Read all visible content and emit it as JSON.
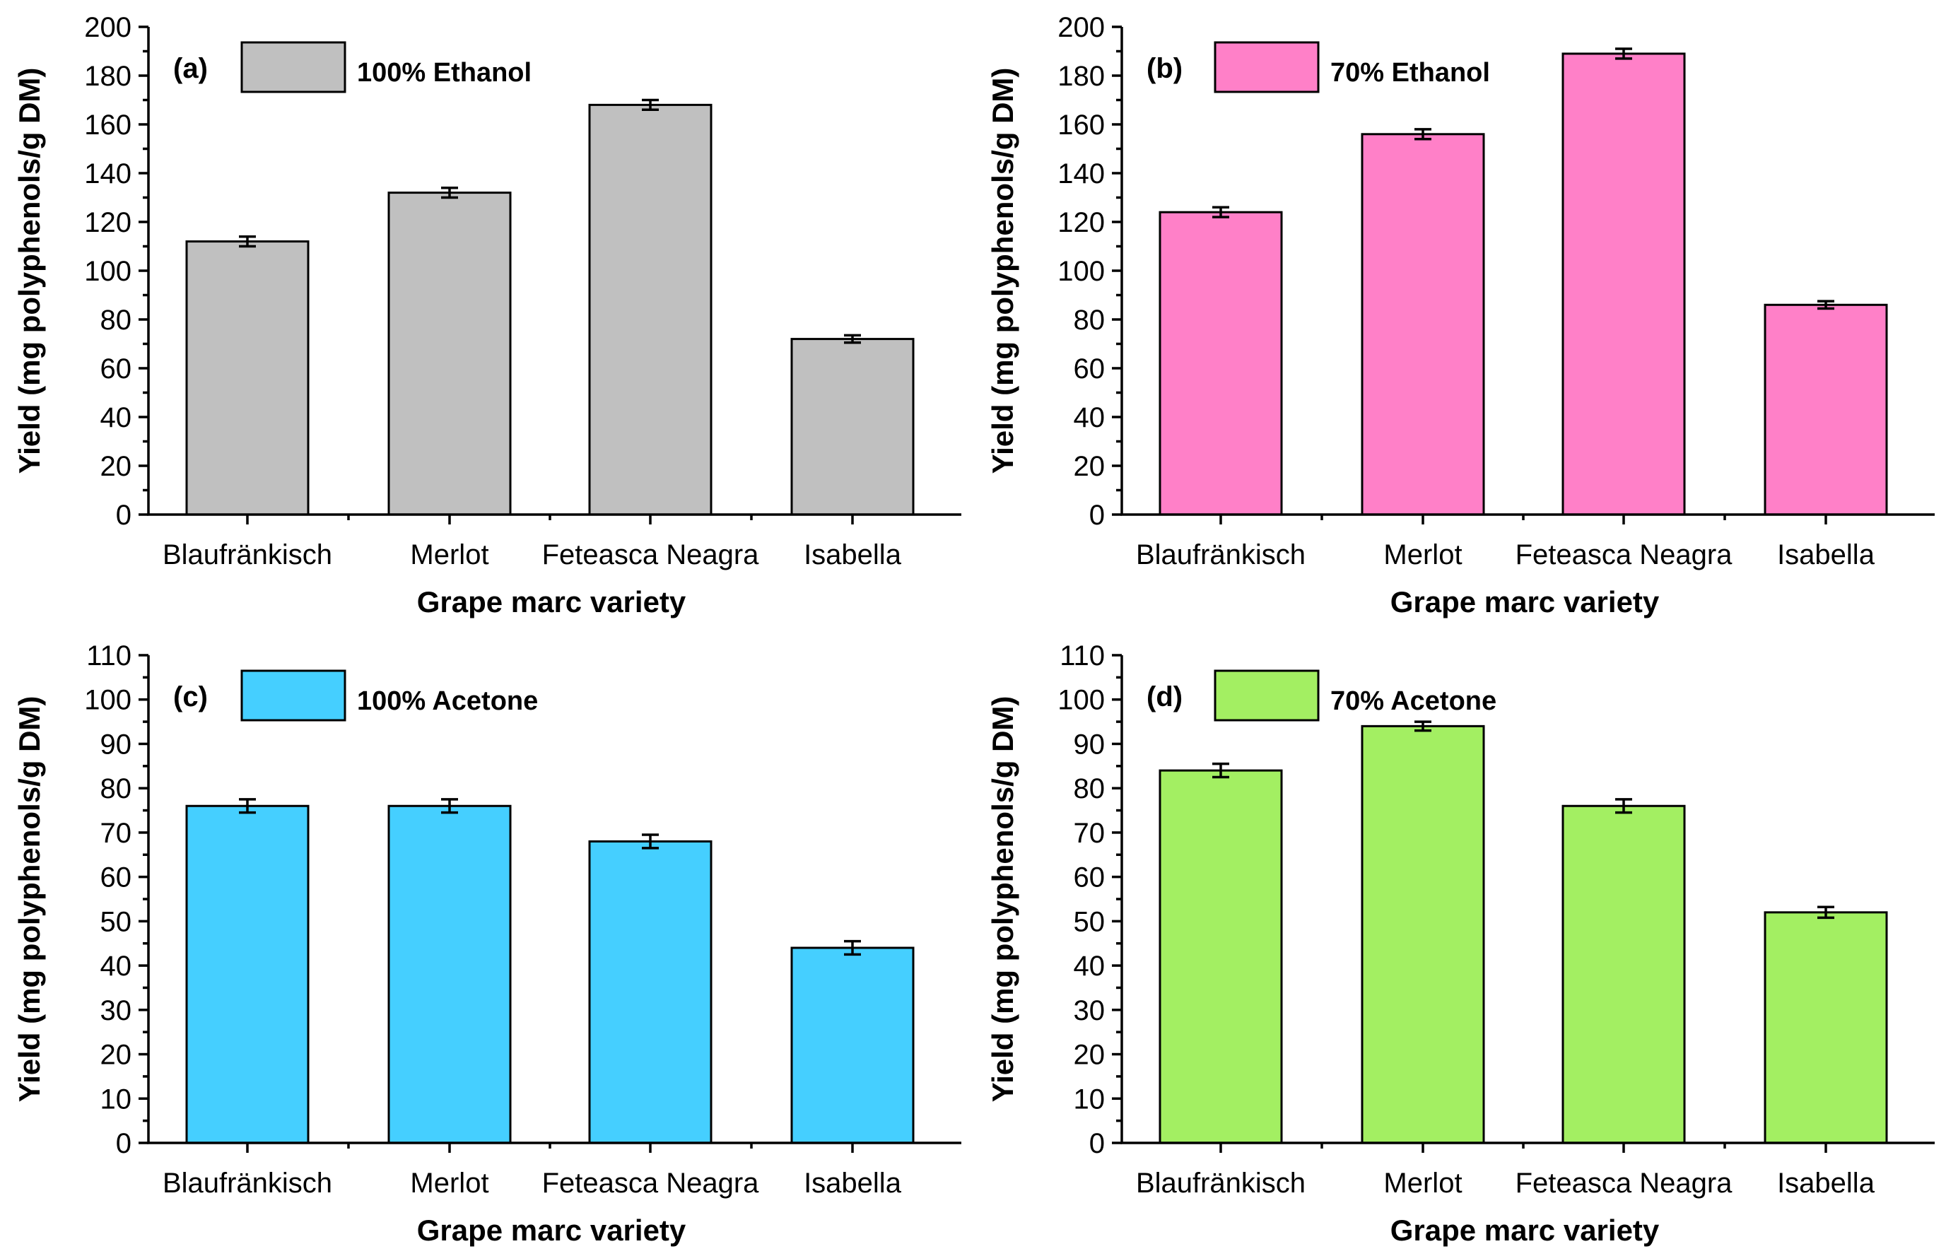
{
  "chart_data": [
    {
      "type": "bar",
      "panel": "(a)",
      "legend": "100% Ethanol",
      "color": "#c0c0c0",
      "categories": [
        "Blaufränkisch",
        "Merlot",
        "Feteasca Neagra",
        "Isabella"
      ],
      "values": [
        112,
        132,
        168,
        72
      ],
      "errors": [
        2,
        2,
        2,
        1.5
      ],
      "xlabel": "Grape marc variety",
      "ylabel": "Yield (mg polyphenols/g DM)",
      "ylim": [
        0,
        200
      ],
      "yticks": [
        0,
        20,
        40,
        60,
        80,
        100,
        120,
        140,
        160,
        180,
        200
      ]
    },
    {
      "type": "bar",
      "panel": "(b)",
      "legend": "70% Ethanol",
      "color": "#ff80c8",
      "categories": [
        "Blaufränkisch",
        "Merlot",
        "Feteasca Neagra",
        "Isabella"
      ],
      "values": [
        124,
        156,
        189,
        86
      ],
      "errors": [
        2,
        2,
        2,
        1.5
      ],
      "xlabel": "Grape marc variety",
      "ylabel": "Yield (mg polyphenols/g DM)",
      "ylim": [
        0,
        200
      ],
      "yticks": [
        0,
        20,
        40,
        60,
        80,
        100,
        120,
        140,
        160,
        180,
        200
      ]
    },
    {
      "type": "bar",
      "panel": "(c)",
      "legend": "100% Acetone",
      "color": "#45cfff",
      "categories": [
        "Blaufränkisch",
        "Merlot",
        "Feteasca Neagra",
        "Isabella"
      ],
      "values": [
        76,
        76,
        68,
        44
      ],
      "errors": [
        1.5,
        1.5,
        1.5,
        1.5
      ],
      "xlabel": "Grape marc variety",
      "ylabel": "Yield (mg polyphenols/g DM)",
      "ylim": [
        0,
        110
      ],
      "yticks": [
        0,
        10,
        20,
        30,
        40,
        50,
        60,
        70,
        80,
        90,
        100,
        110
      ]
    },
    {
      "type": "bar",
      "panel": "(d)",
      "legend": "70% Acetone",
      "color": "#a3ef62",
      "categories": [
        "Blaufränkisch",
        "Merlot",
        "Feteasca Neagra",
        "Isabella"
      ],
      "values": [
        84,
        94,
        76,
        52
      ],
      "errors": [
        1.5,
        1,
        1.5,
        1.2
      ],
      "xlabel": "Grape marc variety",
      "ylabel": "Yield (mg polyphenols/g DM)",
      "ylim": [
        0,
        110
      ],
      "yticks": [
        0,
        10,
        20,
        30,
        40,
        50,
        60,
        70,
        80,
        90,
        100,
        110
      ]
    }
  ]
}
